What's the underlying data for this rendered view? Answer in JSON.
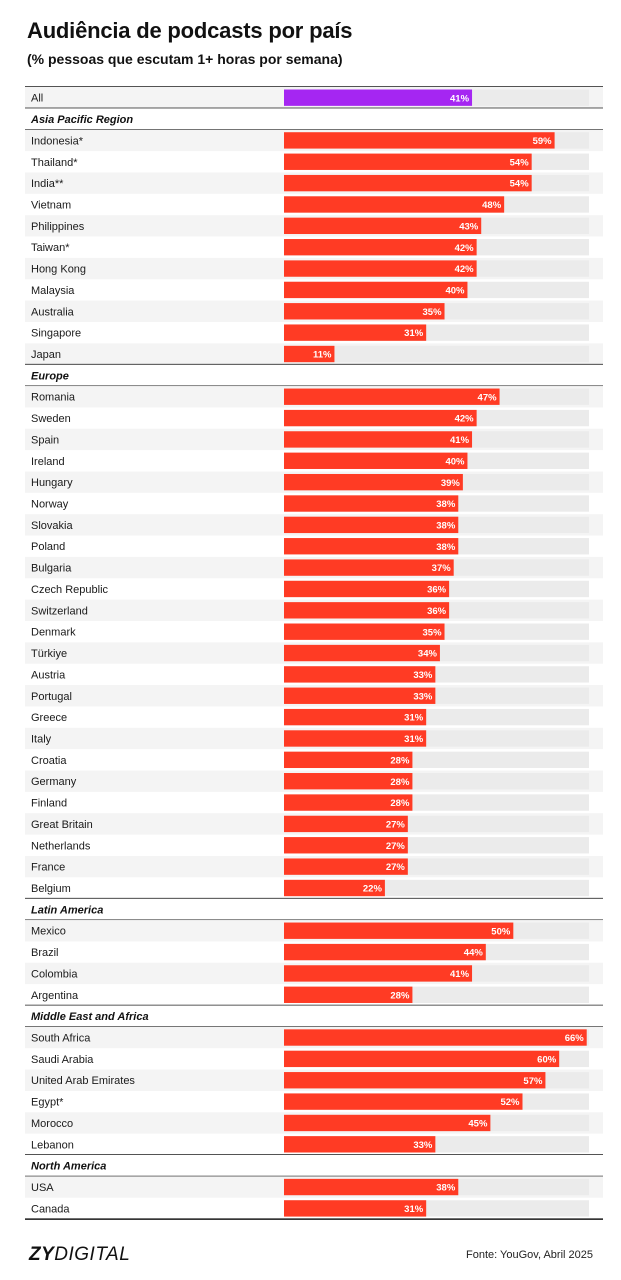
{
  "title": "Audiência de podcasts por país",
  "subtitle": "(% pessoas que escutam 1+ horas por semana)",
  "footer": {
    "logo_bold": "ZY",
    "logo_rest": "DIGITAL",
    "source": "Fonte: YouGov, Abril 2025"
  },
  "colors": {
    "bar": "#ff3b24",
    "highlight": "#a526f2",
    "track": "#ebebeb",
    "stripe": "#f4f4f4",
    "label": "#ffffff"
  },
  "chart_data": {
    "type": "bar",
    "orientation": "horizontal",
    "value_suffix": "%",
    "xlim": [
      0,
      68
    ],
    "groups": [
      {
        "name": "",
        "rows": [
          {
            "label": "All",
            "value": 41,
            "highlight": true
          }
        ]
      },
      {
        "name": "Asia Pacific Region",
        "rows": [
          {
            "label": "Indonesia*",
            "value": 59
          },
          {
            "label": "Thailand*",
            "value": 54
          },
          {
            "label": "India**",
            "value": 54
          },
          {
            "label": "Vietnam",
            "value": 48
          },
          {
            "label": "Philippines",
            "value": 43
          },
          {
            "label": "Taiwan*",
            "value": 42
          },
          {
            "label": "Hong Kong",
            "value": 42
          },
          {
            "label": "Malaysia",
            "value": 40
          },
          {
            "label": "Australia",
            "value": 35
          },
          {
            "label": "Singapore",
            "value": 31
          },
          {
            "label": "Japan",
            "value": 11
          }
        ]
      },
      {
        "name": "Europe",
        "rows": [
          {
            "label": "Romania",
            "value": 47
          },
          {
            "label": "Sweden",
            "value": 42
          },
          {
            "label": "Spain",
            "value": 41
          },
          {
            "label": "Ireland",
            "value": 40
          },
          {
            "label": "Hungary",
            "value": 39
          },
          {
            "label": "Norway",
            "value": 38
          },
          {
            "label": "Slovakia",
            "value": 38
          },
          {
            "label": "Poland",
            "value": 38
          },
          {
            "label": "Bulgaria",
            "value": 37
          },
          {
            "label": "Czech Republic",
            "value": 36
          },
          {
            "label": "Switzerland",
            "value": 36
          },
          {
            "label": "Denmark",
            "value": 35
          },
          {
            "label": "Türkiye",
            "value": 34
          },
          {
            "label": "Austria",
            "value": 33
          },
          {
            "label": "Portugal",
            "value": 33
          },
          {
            "label": "Greece",
            "value": 31
          },
          {
            "label": "Italy",
            "value": 31
          },
          {
            "label": "Croatia",
            "value": 28
          },
          {
            "label": "Germany",
            "value": 28
          },
          {
            "label": "Finland",
            "value": 28
          },
          {
            "label": "Great Britain",
            "value": 27
          },
          {
            "label": "Netherlands",
            "value": 27
          },
          {
            "label": "France",
            "value": 27
          },
          {
            "label": "Belgium",
            "value": 22
          }
        ]
      },
      {
        "name": "Latin America",
        "rows": [
          {
            "label": "Mexico",
            "value": 50
          },
          {
            "label": "Brazil",
            "value": 44
          },
          {
            "label": "Colombia",
            "value": 41
          },
          {
            "label": "Argentina",
            "value": 28
          }
        ]
      },
      {
        "name": "Middle East and Africa",
        "rows": [
          {
            "label": "South Africa",
            "value": 66
          },
          {
            "label": "Saudi Arabia",
            "value": 60
          },
          {
            "label": "United Arab Emirates",
            "value": 57
          },
          {
            "label": "Egypt*",
            "value": 52
          },
          {
            "label": "Morocco",
            "value": 45
          },
          {
            "label": "Lebanon",
            "value": 33
          }
        ]
      },
      {
        "name": "North America",
        "rows": [
          {
            "label": "USA",
            "value": 38
          },
          {
            "label": "Canada",
            "value": 31
          }
        ]
      }
    ]
  }
}
